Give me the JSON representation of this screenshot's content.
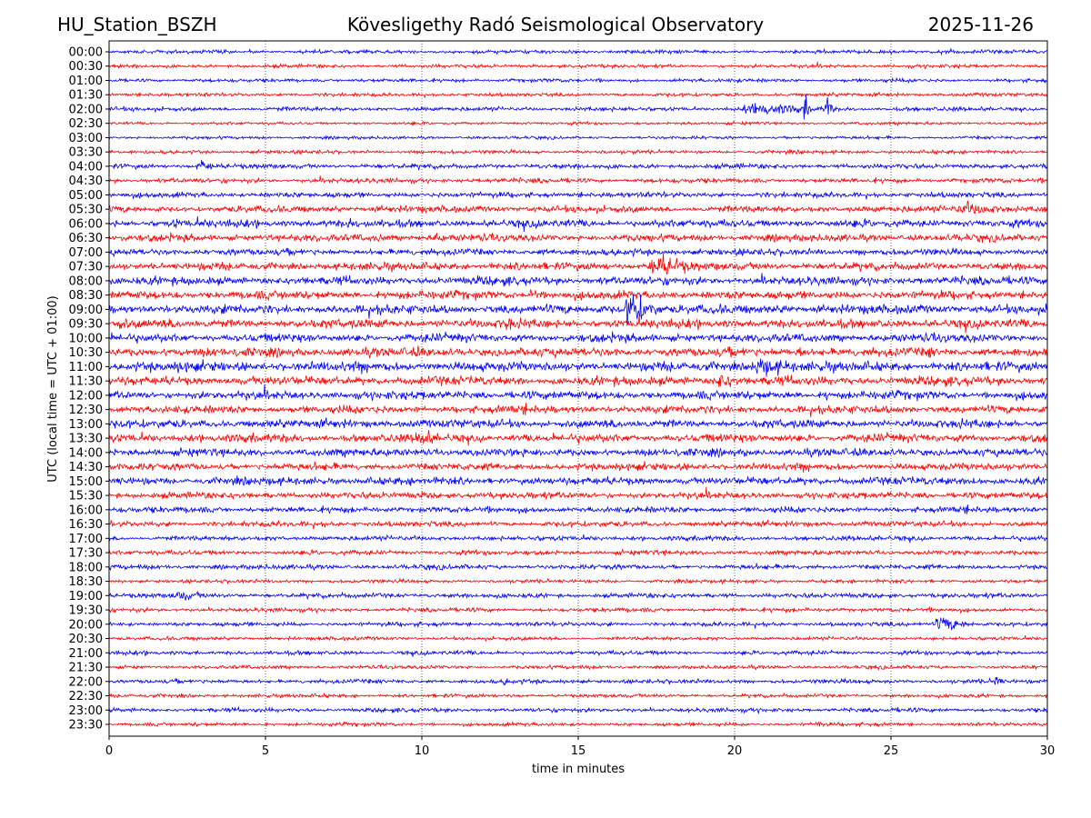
{
  "header": {
    "station": "HU_Station_BSZH",
    "observatory": "Kövesligethy Radó Seismological Observatory",
    "date": "2025-11-26"
  },
  "chart_data": {
    "type": "line",
    "subtype": "helicorder",
    "xlabel": "time in minutes",
    "ylabel": "UTC (local time = UTC + 01:00)",
    "xlim": [
      0,
      30
    ],
    "xticks": [
      "0",
      "5",
      "10",
      "15",
      "20",
      "25",
      "30"
    ],
    "grid": "vertical dotted lines every 5 minutes",
    "trace_colors": [
      "#0000ff",
      "#ff0000"
    ],
    "rows": [
      "00:00",
      "00:30",
      "01:00",
      "01:30",
      "02:00",
      "02:30",
      "03:00",
      "03:30",
      "04:00",
      "04:30",
      "05:00",
      "05:30",
      "06:00",
      "06:30",
      "07:00",
      "07:30",
      "08:00",
      "08:30",
      "09:00",
      "09:30",
      "10:00",
      "10:30",
      "11:00",
      "11:30",
      "12:00",
      "12:30",
      "13:00",
      "13:30",
      "14:00",
      "14:30",
      "15:00",
      "15:30",
      "16:00",
      "16:30",
      "17:00",
      "17:30",
      "18:00",
      "18:30",
      "19:00",
      "19:30",
      "20:00",
      "20:30",
      "21:00",
      "21:30",
      "22:00",
      "22:30",
      "23:00",
      "23:30"
    ],
    "noise_level": [
      0.6,
      0.6,
      0.6,
      0.6,
      0.7,
      0.5,
      0.5,
      0.6,
      0.8,
      0.8,
      0.9,
      1.1,
      1.3,
      1.2,
      1.1,
      1.3,
      1.4,
      1.4,
      1.5,
      1.5,
      1.4,
      1.5,
      1.6,
      1.5,
      1.4,
      1.3,
      1.4,
      1.4,
      1.3,
      1.2,
      1.3,
      1.1,
      1.0,
      0.9,
      0.8,
      0.8,
      0.8,
      0.6,
      0.8,
      0.7,
      0.7,
      0.6,
      0.7,
      0.6,
      0.7,
      0.6,
      0.7,
      0.6
    ],
    "events": [
      {
        "row": 0,
        "start": 26.5,
        "dur": 1.0,
        "amp": 1.4
      },
      {
        "row": 4,
        "start": 20.3,
        "dur": 3.3,
        "amp": 2.6
      },
      {
        "row": 4,
        "start": 22.2,
        "dur": 0.3,
        "amp": 5
      },
      {
        "row": 4,
        "start": 22.9,
        "dur": 0.3,
        "amp": 5.5
      },
      {
        "row": 8,
        "start": 2.8,
        "dur": 1.0,
        "amp": 2.4
      },
      {
        "row": 8,
        "start": 20.0,
        "dur": 0.4,
        "amp": 1.6
      },
      {
        "row": 11,
        "start": 27.0,
        "dur": 3.0,
        "amp": 2.4
      },
      {
        "row": 12,
        "start": 2.0,
        "dur": 0.8,
        "amp": 2.0
      },
      {
        "row": 12,
        "start": 7.6,
        "dur": 0.5,
        "amp": 2.2
      },
      {
        "row": 13,
        "start": 10.4,
        "dur": 0.4,
        "amp": 2.8
      },
      {
        "row": 13,
        "start": 8.5,
        "dur": 0.6,
        "amp": 2.0
      },
      {
        "row": 15,
        "start": 17.2,
        "dur": 2.4,
        "amp": 4.2
      },
      {
        "row": 16,
        "start": 20.8,
        "dur": 0.3,
        "amp": 2.6
      },
      {
        "row": 17,
        "start": 13.4,
        "dur": 0.7,
        "amp": 3.0
      },
      {
        "row": 18,
        "start": 16.5,
        "dur": 1.2,
        "amp": 7.5
      },
      {
        "row": 18,
        "start": 21.5,
        "dur": 0.5,
        "amp": 2.2
      },
      {
        "row": 19,
        "start": 12.7,
        "dur": 0.3,
        "amp": 4.5
      },
      {
        "row": 19,
        "start": 0.0,
        "dur": 2.5,
        "amp": 2.0
      },
      {
        "row": 19,
        "start": 8.5,
        "dur": 2.0,
        "amp": 1.9
      },
      {
        "row": 21,
        "start": 26.1,
        "dur": 0.5,
        "amp": 3.0
      },
      {
        "row": 21,
        "start": 22.0,
        "dur": 0.6,
        "amp": 2.4
      },
      {
        "row": 21,
        "start": 9.8,
        "dur": 0.4,
        "amp": 2.4
      },
      {
        "row": 22,
        "start": 20.5,
        "dur": 2.6,
        "amp": 3.5
      },
      {
        "row": 22,
        "start": 2.0,
        "dur": 2.0,
        "amp": 2.3
      },
      {
        "row": 23,
        "start": 19.3,
        "dur": 1.8,
        "amp": 3.0
      },
      {
        "row": 24,
        "start": 22.8,
        "dur": 0.5,
        "amp": 2.0
      },
      {
        "row": 27,
        "start": 9.8,
        "dur": 1.2,
        "amp": 3.8
      },
      {
        "row": 28,
        "start": 20.3,
        "dur": 0.2,
        "amp": 2.0
      },
      {
        "row": 30,
        "start": 27.5,
        "dur": 1.0,
        "amp": 2.0
      },
      {
        "row": 38,
        "start": 2.0,
        "dur": 2.0,
        "amp": 1.9
      },
      {
        "row": 40,
        "start": 26.4,
        "dur": 1.6,
        "amp": 3.0
      },
      {
        "row": 44,
        "start": 28.3,
        "dur": 0.3,
        "amp": 4.0
      },
      {
        "row": 44,
        "start": 12.6,
        "dur": 0.4,
        "amp": 1.8
      },
      {
        "row": 47,
        "start": 22.6,
        "dur": 0.3,
        "amp": 2.5
      }
    ]
  }
}
